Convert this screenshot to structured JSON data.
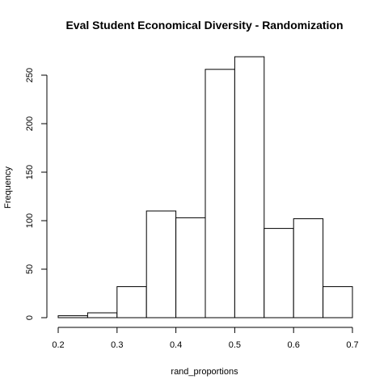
{
  "chart_data": {
    "type": "bar",
    "title": "Eval Student Economical Diversity - Randomization",
    "xlabel": "rand_proportions",
    "ylabel": "Frequency",
    "xlim": [
      0.2,
      0.7
    ],
    "ylim": [
      0,
      270
    ],
    "x_ticks": [
      "0.2",
      "0.3",
      "0.4",
      "0.5",
      "0.6",
      "0.7"
    ],
    "y_ticks": [
      "0",
      "50",
      "100",
      "150",
      "200",
      "250"
    ],
    "bins": [
      {
        "from": 0.2,
        "to": 0.25,
        "value": 2
      },
      {
        "from": 0.25,
        "to": 0.3,
        "value": 5
      },
      {
        "from": 0.3,
        "to": 0.35,
        "value": 32
      },
      {
        "from": 0.35,
        "to": 0.4,
        "value": 110
      },
      {
        "from": 0.4,
        "to": 0.45,
        "value": 103
      },
      {
        "from": 0.45,
        "to": 0.5,
        "value": 256
      },
      {
        "from": 0.5,
        "to": 0.55,
        "value": 269
      },
      {
        "from": 0.55,
        "to": 0.6,
        "value": 92
      },
      {
        "from": 0.6,
        "to": 0.65,
        "value": 102
      },
      {
        "from": 0.65,
        "to": 0.7,
        "value": 32
      }
    ]
  }
}
